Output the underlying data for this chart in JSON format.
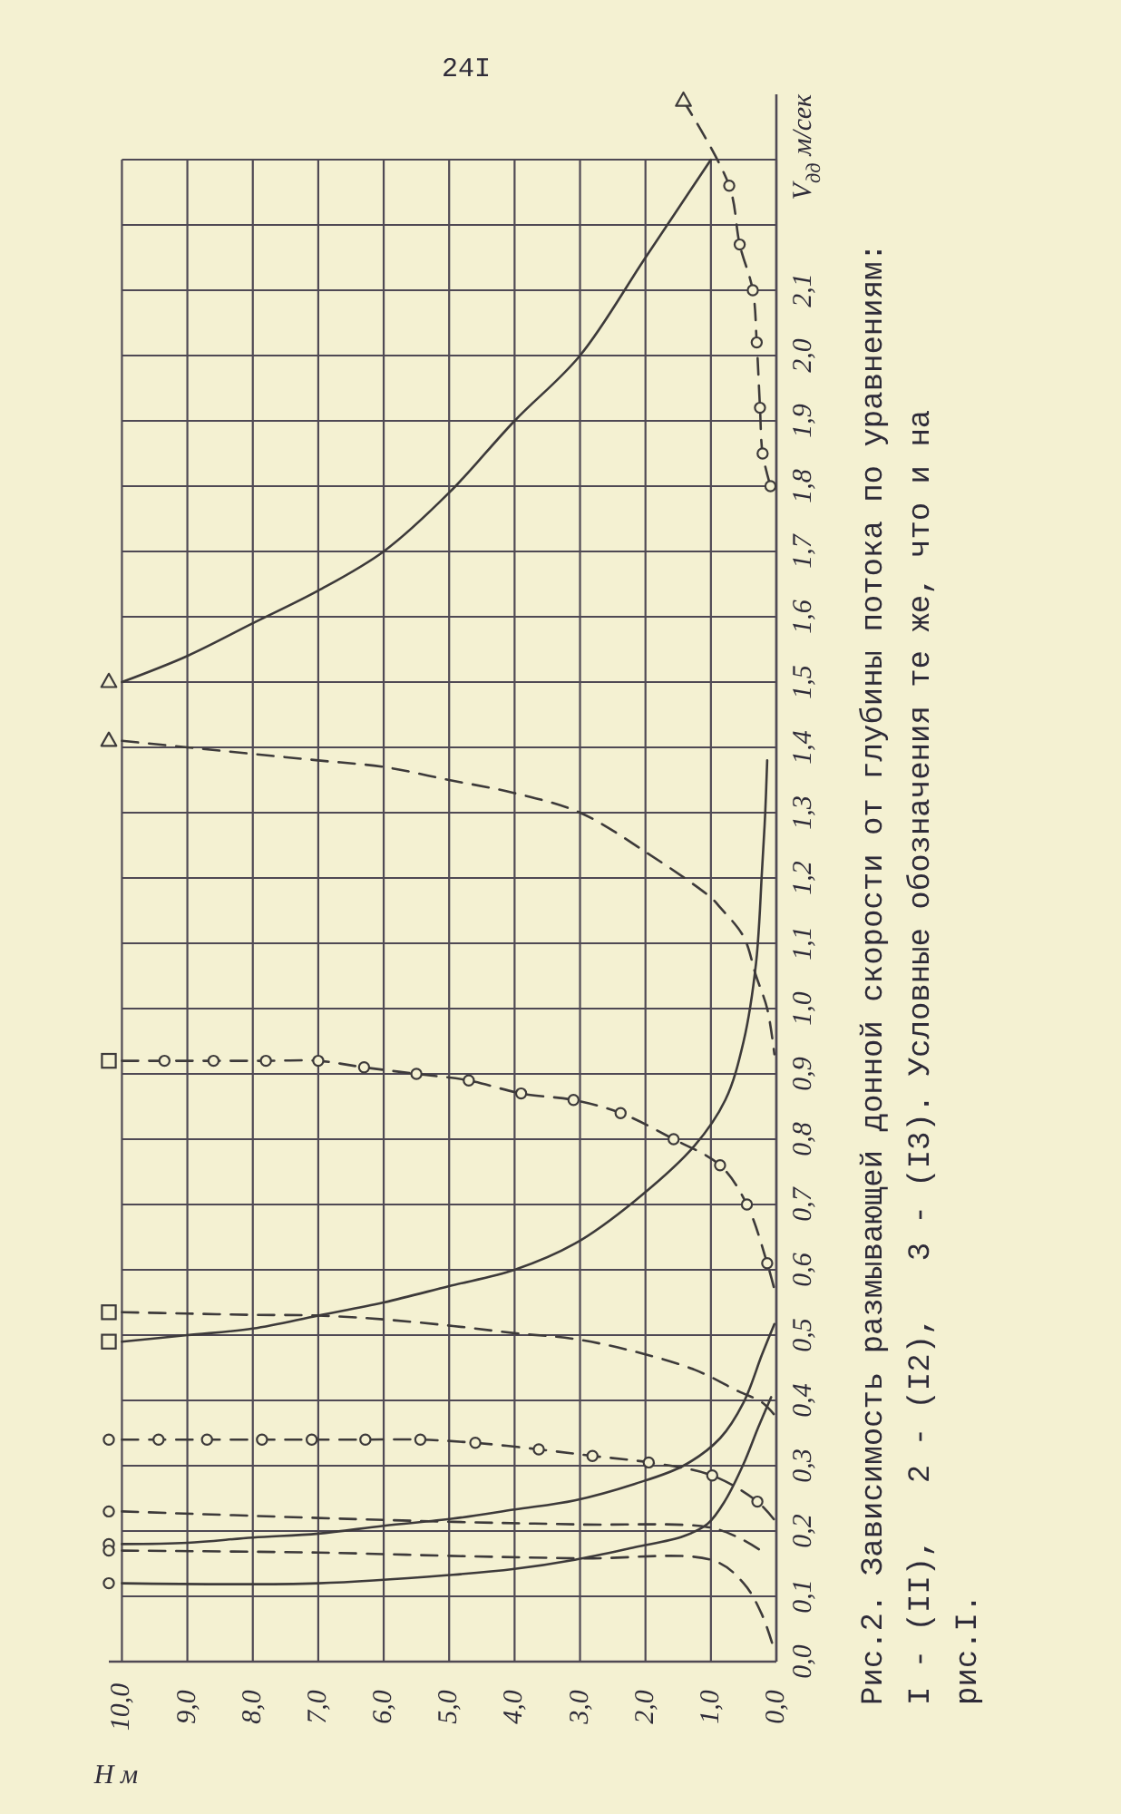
{
  "chart_data": {
    "type": "line",
    "xlabel": "H м",
    "ylabel": "V$_{дд}$ м/сек",
    "annotations": [
      "24I",
      "Рис.2. Зависимость размывающей донной скорости от глубины потока по уравнениям:\nI - (II),   2 - (I2),   3 - (I3). Условные обозначения те же, что и на\nрис.I."
    ],
    "xlim": [
      10.2,
      0
    ],
    "ylim": [
      0,
      2.4
    ],
    "xticks": [
      {
        "value": 10,
        "label": "10,0"
      },
      {
        "value": 9,
        "label": "9,0"
      },
      {
        "value": 8,
        "label": "8,0"
      },
      {
        "value": 7,
        "label": "7,0"
      },
      {
        "value": 6,
        "label": "6,0"
      },
      {
        "value": 5,
        "label": "5,0"
      },
      {
        "value": 4,
        "label": "4,0"
      },
      {
        "value": 3,
        "label": "3,0"
      },
      {
        "value": 2,
        "label": "2,0"
      },
      {
        "value": 1,
        "label": "1,0"
      },
      {
        "value": 0,
        "label": "0,0"
      }
    ],
    "yticks": [
      {
        "value": 0,
        "label": "0,0"
      },
      {
        "value": 0.1,
        "label": "0,1"
      },
      {
        "value": 0.2,
        "label": "0,2"
      },
      {
        "value": 0.3,
        "label": "0,3"
      },
      {
        "value": 0.4,
        "label": "0,4"
      },
      {
        "value": 0.5,
        "label": "0,5"
      },
      {
        "value": 0.6,
        "label": "0,6"
      },
      {
        "value": 0.7,
        "label": "0,7"
      },
      {
        "value": 0.8,
        "label": "0,8"
      },
      {
        "value": 0.9,
        "label": "0,9"
      },
      {
        "value": 1,
        "label": "1,0"
      },
      {
        "value": 1.1,
        "label": "1,1"
      },
      {
        "value": 1.2,
        "label": "1,2"
      },
      {
        "value": 1.3,
        "label": "1,3"
      },
      {
        "value": 1.4,
        "label": "1,4"
      },
      {
        "value": 1.5,
        "label": "1,5"
      },
      {
        "value": 1.6,
        "label": "1,6"
      },
      {
        "value": 1.7,
        "label": "1,7"
      },
      {
        "value": 1.8,
        "label": "1,8"
      },
      {
        "value": 1.9,
        "label": "1,9"
      },
      {
        "value": 2,
        "label": "2,0"
      },
      {
        "value": 2.1,
        "label": "2,1"
      },
      {
        "value": 2.2,
        "label": null
      },
      {
        "value": 2.3,
        "label": null
      }
    ],
    "grid": true,
    "series": [
      {
        "line_style": "solid",
        "color": "#3d3a3a",
        "x": [
          10,
          9,
          8,
          7,
          6,
          5,
          4,
          3,
          2,
          1
        ],
        "values": [
          1.5,
          1.54,
          1.59,
          1.64,
          1.7,
          1.79,
          1.9,
          2.0,
          2.15,
          2.3
        ]
      },
      {
        "line_style": "dashed",
        "color": "#3d3a3a",
        "x": [
          10,
          9,
          8,
          7,
          6,
          5,
          4,
          3,
          2,
          1,
          0.86,
          0.5,
          0.31,
          0.14,
          0.03
        ],
        "values": [
          1.41,
          1.4,
          1.39,
          1.38,
          1.37,
          1.35,
          1.33,
          1.3,
          1.24,
          1.17,
          1.155,
          1.11,
          1.05,
          1.0,
          0.93
        ]
      },
      {
        "line_style": "dashed",
        "color": "#3d3a3a",
        "x": [
          1.42,
          0.72,
          0.56,
          0.36,
          0.3,
          0.25,
          0.21,
          0.09
        ],
        "values": [
          2.39,
          2.26,
          2.17,
          2.1,
          2.02,
          1.92,
          1.85,
          1.8
        ]
      },
      {
        "line_style": "dashed",
        "color": "#3d3a3a",
        "x": [
          10,
          9.35,
          8.6,
          7.8,
          7.0,
          6.3,
          5.5,
          4.7,
          3.9,
          3.1,
          2.38,
          1.57,
          0.86,
          0.45,
          0.14,
          0.03
        ],
        "values": [
          0.92,
          0.92,
          0.92,
          0.92,
          0.92,
          0.91,
          0.9,
          0.89,
          0.87,
          0.86,
          0.84,
          0.8,
          0.76,
          0.7,
          0.61,
          0.57
        ]
      },
      {
        "line_style": "dashed",
        "color": "#3d3a3a",
        "x": [
          10,
          9,
          8,
          7,
          6,
          4.94,
          4,
          3.08,
          2.17,
          1.25,
          0.58,
          0.22,
          0.03
        ],
        "values": [
          0.535,
          0.533,
          0.531,
          0.53,
          0.524,
          0.514,
          0.503,
          0.494,
          0.475,
          0.447,
          0.414,
          0.397,
          0.378
        ]
      },
      {
        "line_style": "solid",
        "color": "#3d3a3a",
        "x": [
          10,
          9,
          8,
          7,
          6,
          5,
          4,
          3.08,
          2.17,
          1.25,
          0.78,
          0.5,
          0.31,
          0.22,
          0.17,
          0.14
        ],
        "values": [
          0.49,
          0.5,
          0.51,
          0.53,
          0.55,
          0.575,
          0.6,
          0.64,
          0.705,
          0.79,
          0.86,
          0.95,
          1.07,
          1.21,
          1.3,
          1.38
        ]
      },
      {
        "line_style": "dashed",
        "color": "#3d3a3a",
        "x": [
          10,
          9.44,
          8.7,
          7.86,
          7.1,
          6.28,
          5.44,
          4.6,
          3.63,
          2.81,
          1.95,
          0.98,
          0.29,
          0.03
        ],
        "values": [
          0.34,
          0.34,
          0.34,
          0.34,
          0.34,
          0.34,
          0.34,
          0.335,
          0.325,
          0.315,
          0.305,
          0.285,
          0.245,
          0.217
        ]
      },
      {
        "line_style": "dashed",
        "color": "#3d3a3a",
        "x": [
          10,
          7,
          4.94,
          3,
          1.05,
          0.58,
          0.14
        ],
        "values": [
          0.23,
          0.22,
          0.214,
          0.21,
          0.206,
          0.19,
          0.164
        ]
      },
      {
        "line_style": "solid",
        "color": "#3d3a3a",
        "x": [
          10,
          9,
          8,
          7,
          6,
          4.94,
          4,
          3.08,
          2.17,
          1.42,
          0.86,
          0.5,
          0.22,
          0.03
        ],
        "values": [
          0.18,
          0.182,
          0.19,
          0.196,
          0.208,
          0.219,
          0.233,
          0.247,
          0.272,
          0.3,
          0.342,
          0.397,
          0.47,
          0.517
        ]
      },
      {
        "line_style": "dashed",
        "color": "#3d3a3a",
        "x": [
          10,
          7,
          5,
          3,
          0.97,
          0.5,
          0.22,
          0.03
        ],
        "values": [
          0.17,
          0.167,
          0.162,
          0.158,
          0.155,
          0.12,
          0.072,
          0.017
        ]
      },
      {
        "line_style": "solid",
        "color": "#3d3a3a",
        "x": [
          10,
          7,
          4.94,
          4,
          3.08,
          2.17,
          1.42,
          1.05,
          0.78,
          0.5,
          0.28,
          0.08
        ],
        "values": [
          0.12,
          0.12,
          0.133,
          0.142,
          0.156,
          0.175,
          0.192,
          0.211,
          0.247,
          0.303,
          0.358,
          0.405
        ]
      },
      {
        "type": "scatter",
        "marker": "circle",
        "color": "#3d3a3a",
        "x": [
          0.72,
          0.56,
          0.36,
          0.3,
          0.25,
          0.21,
          0.09,
          9.35,
          8.6,
          7.8,
          7.0,
          6.3,
          5.5,
          4.7,
          3.9,
          3.1,
          2.38,
          1.57,
          0.86,
          0.45,
          0.14,
          9.44,
          8.7,
          7.86,
          7.1,
          6.28,
          5.44,
          4.6,
          3.63,
          2.81,
          1.95,
          0.98,
          0.29
        ],
        "values": [
          2.26,
          2.17,
          2.1,
          2.02,
          1.92,
          1.85,
          1.8,
          0.92,
          0.92,
          0.92,
          0.92,
          0.91,
          0.9,
          0.89,
          0.87,
          0.86,
          0.84,
          0.8,
          0.76,
          0.7,
          0.61,
          0.34,
          0.34,
          0.34,
          0.34,
          0.34,
          0.34,
          0.335,
          0.325,
          0.315,
          0.305,
          0.285,
          0.245
        ]
      },
      {
        "type": "scatter",
        "marker": "triangle",
        "color": "#3d3a3a",
        "x": [
          10.2,
          10.2,
          1.42
        ],
        "values": [
          1.5,
          1.41,
          2.39
        ]
      },
      {
        "type": "scatter",
        "marker": "square",
        "color": "#3d3a3a",
        "x": [
          10.2,
          10.2,
          10.2
        ],
        "values": [
          0.92,
          0.535,
          0.49
        ]
      },
      {
        "type": "scatter",
        "marker": "circle",
        "color": "#3d3a3a",
        "x": [
          10.2,
          10.2,
          10.2,
          10.2,
          10.2
        ],
        "values": [
          0.34,
          0.23,
          0.18,
          0.17,
          0.12
        ]
      }
    ]
  }
}
